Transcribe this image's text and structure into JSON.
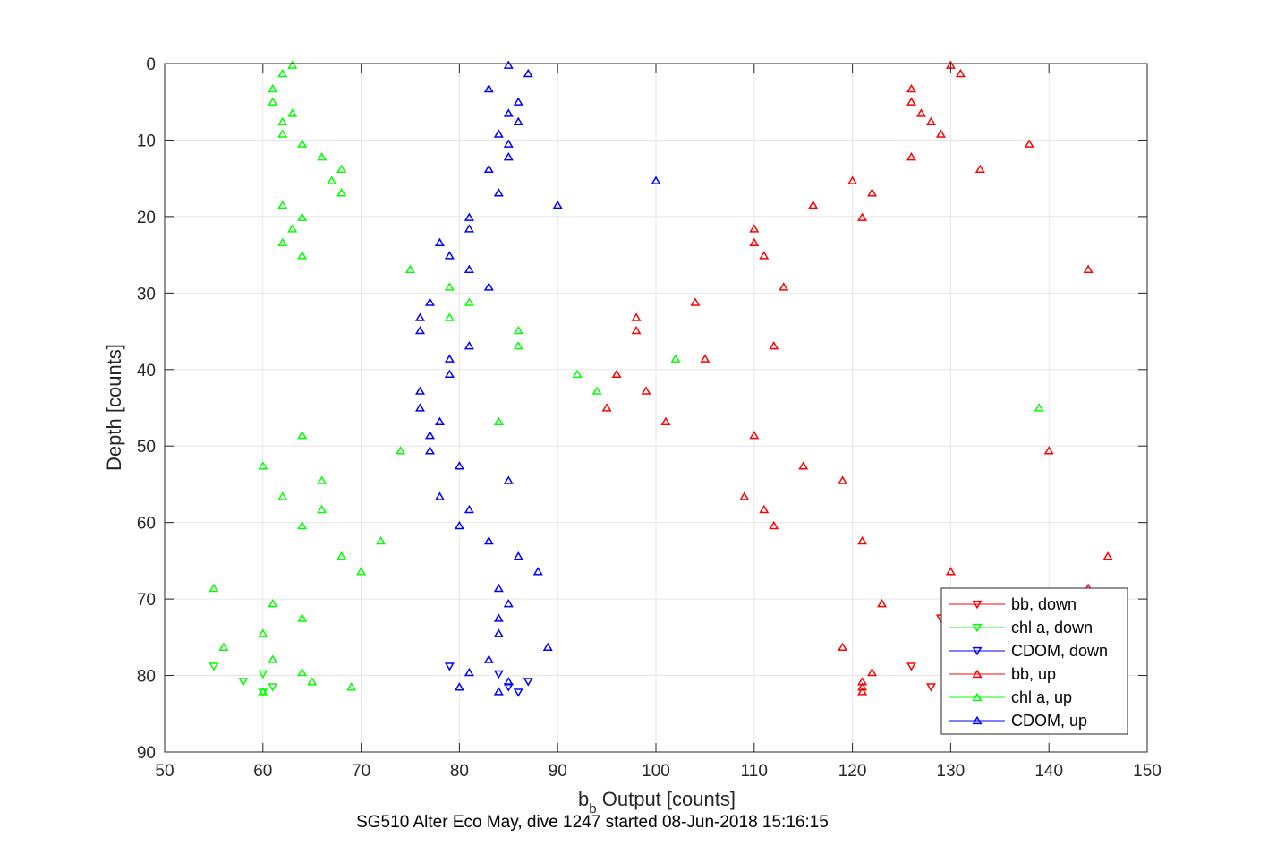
{
  "chart_data": {
    "type": "scatter",
    "xlabel_main": "b",
    "xlabel_sub": "b",
    "xlabel_rest": " Output [counts]",
    "ylabel": "Depth [counts]",
    "subtitle": "SG510 Alter Eco May, dive 1247 started 08-Jun-2018 15:16:15",
    "xlim": [
      50,
      150
    ],
    "ylim": [
      0,
      90
    ],
    "y_reversed": true,
    "grid": true,
    "legend_position": "bottom-right",
    "xticks": [
      "50",
      "60",
      "70",
      "80",
      "90",
      "100",
      "110",
      "120",
      "130",
      "140",
      "150"
    ],
    "yticks": [
      "0",
      "10",
      "20",
      "30",
      "40",
      "50",
      "60",
      "70",
      "80",
      "90"
    ],
    "series": [
      {
        "name": "bb, down",
        "color": "#ff0000",
        "marker": "triangle-down",
        "points": [
          [
            126,
            78.8
          ],
          [
            128,
            81.5
          ],
          [
            129,
            72.5
          ],
          [
            131,
            79.5
          ]
        ]
      },
      {
        "name": "chl a, down",
        "color": "#00ff00",
        "marker": "triangle-down",
        "points": [
          [
            55,
            78.8
          ],
          [
            58,
            80.8
          ],
          [
            60,
            79.8
          ],
          [
            61,
            81.5
          ],
          [
            60,
            82.2
          ]
        ]
      },
      {
        "name": "CDOM, down",
        "color": "#0000ff",
        "marker": "triangle-down",
        "points": [
          [
            79,
            78.8
          ],
          [
            84,
            79.8
          ],
          [
            85,
            81.5
          ],
          [
            86,
            82.2
          ],
          [
            87,
            80.8
          ]
        ]
      },
      {
        "name": "bb, up",
        "color": "#ff0000",
        "marker": "triangle-up",
        "points": [
          [
            130,
            0.2
          ],
          [
            131,
            1.3
          ],
          [
            126,
            3.3
          ],
          [
            126,
            5.0
          ],
          [
            127,
            6.5
          ],
          [
            128,
            7.6
          ],
          [
            129,
            9.2
          ],
          [
            138,
            10.5
          ],
          [
            126,
            12.2
          ],
          [
            133,
            13.8
          ],
          [
            120,
            15.3
          ],
          [
            122,
            16.9
          ],
          [
            116,
            18.5
          ],
          [
            121,
            20.1
          ],
          [
            110,
            21.6
          ],
          [
            110,
            23.4
          ],
          [
            111,
            25.1
          ],
          [
            144,
            26.9
          ],
          [
            113,
            29.2
          ],
          [
            104,
            31.2
          ],
          [
            98,
            33.2
          ],
          [
            98,
            34.9
          ],
          [
            112,
            36.9
          ],
          [
            105,
            38.6
          ],
          [
            96,
            40.6
          ],
          [
            99,
            42.8
          ],
          [
            95,
            45.0
          ],
          [
            101,
            46.8
          ],
          [
            110,
            48.6
          ],
          [
            140,
            50.6
          ],
          [
            115,
            52.6
          ],
          [
            119,
            54.5
          ],
          [
            109,
            56.6
          ],
          [
            111,
            58.3
          ],
          [
            112,
            60.4
          ],
          [
            121,
            62.4
          ],
          [
            146,
            64.4
          ],
          [
            130,
            66.4
          ],
          [
            144,
            68.6
          ],
          [
            123,
            70.6
          ],
          [
            119,
            76.3
          ],
          [
            122,
            79.6
          ],
          [
            121,
            80.8
          ],
          [
            121,
            81.5
          ],
          [
            121,
            82.1
          ]
        ]
      },
      {
        "name": "chl a, up",
        "color": "#00ff00",
        "marker": "triangle-up",
        "points": [
          [
            63,
            0.2
          ],
          [
            62,
            1.3
          ],
          [
            61,
            3.3
          ],
          [
            61,
            5.0
          ],
          [
            63,
            6.5
          ],
          [
            62,
            7.6
          ],
          [
            62,
            9.2
          ],
          [
            64,
            10.5
          ],
          [
            66,
            12.2
          ],
          [
            68,
            13.8
          ],
          [
            67,
            15.3
          ],
          [
            68,
            16.9
          ],
          [
            62,
            18.5
          ],
          [
            64,
            20.1
          ],
          [
            63,
            21.6
          ],
          [
            62,
            23.4
          ],
          [
            64,
            25.1
          ],
          [
            75,
            26.9
          ],
          [
            79,
            29.2
          ],
          [
            81,
            31.2
          ],
          [
            79,
            33.2
          ],
          [
            86,
            34.9
          ],
          [
            86,
            36.9
          ],
          [
            102,
            38.6
          ],
          [
            92,
            40.6
          ],
          [
            94,
            42.8
          ],
          [
            139,
            45.0
          ],
          [
            84,
            46.8
          ],
          [
            64,
            48.6
          ],
          [
            74,
            50.6
          ],
          [
            60,
            52.6
          ],
          [
            66,
            54.5
          ],
          [
            62,
            56.6
          ],
          [
            66,
            58.3
          ],
          [
            64,
            60.4
          ],
          [
            72,
            62.4
          ],
          [
            68,
            64.4
          ],
          [
            70,
            66.4
          ],
          [
            55,
            68.6
          ],
          [
            61,
            70.6
          ],
          [
            64,
            72.5
          ],
          [
            60,
            74.5
          ],
          [
            56,
            76.3
          ],
          [
            61,
            77.9
          ],
          [
            64,
            79.6
          ],
          [
            65,
            80.8
          ],
          [
            69,
            81.5
          ],
          [
            60,
            82.1
          ]
        ]
      },
      {
        "name": "CDOM, up",
        "color": "#0000ff",
        "marker": "triangle-up",
        "points": [
          [
            85,
            0.2
          ],
          [
            87,
            1.3
          ],
          [
            83,
            3.3
          ],
          [
            86,
            5.0
          ],
          [
            85,
            6.5
          ],
          [
            86,
            7.6
          ],
          [
            84,
            9.2
          ],
          [
            85,
            10.5
          ],
          [
            85,
            12.2
          ],
          [
            83,
            13.8
          ],
          [
            100,
            15.3
          ],
          [
            84,
            16.9
          ],
          [
            90,
            18.5
          ],
          [
            81,
            20.1
          ],
          [
            81,
            21.6
          ],
          [
            78,
            23.4
          ],
          [
            79,
            25.1
          ],
          [
            81,
            26.9
          ],
          [
            83,
            29.2
          ],
          [
            77,
            31.2
          ],
          [
            76,
            33.2
          ],
          [
            76,
            34.9
          ],
          [
            81,
            36.9
          ],
          [
            79,
            38.6
          ],
          [
            79,
            40.6
          ],
          [
            76,
            42.8
          ],
          [
            76,
            45.0
          ],
          [
            78,
            46.8
          ],
          [
            77,
            48.6
          ],
          [
            77,
            50.6
          ],
          [
            80,
            52.6
          ],
          [
            85,
            54.5
          ],
          [
            78,
            56.6
          ],
          [
            81,
            58.3
          ],
          [
            80,
            60.4
          ],
          [
            83,
            62.4
          ],
          [
            86,
            64.4
          ],
          [
            88,
            66.4
          ],
          [
            84,
            68.6
          ],
          [
            85,
            70.6
          ],
          [
            84,
            72.5
          ],
          [
            84,
            74.5
          ],
          [
            89,
            76.3
          ],
          [
            83,
            77.9
          ],
          [
            81,
            79.6
          ],
          [
            85,
            80.8
          ],
          [
            80,
            81.5
          ],
          [
            84,
            82.1
          ]
        ]
      }
    ]
  }
}
